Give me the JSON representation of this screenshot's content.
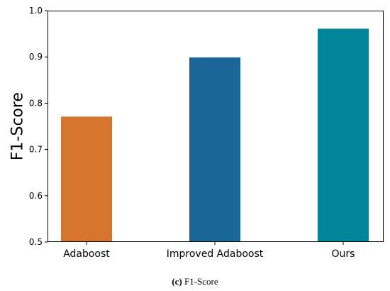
{
  "chart_data": {
    "type": "bar",
    "categories": [
      "Adaboost",
      "Improved Adaboost",
      "Ours"
    ],
    "values": [
      0.771,
      0.899,
      0.961
    ],
    "ylabel": "F1-Score",
    "xlabel": "",
    "ylim": [
      0.5,
      1.0
    ],
    "yticks": [
      "0.5",
      "0.6",
      "0.7",
      "0.8",
      "0.9",
      "1.0"
    ],
    "ytick_values": [
      0.5,
      0.6,
      0.7,
      0.8,
      0.9,
      1.0
    ],
    "colors": [
      "#d5742c",
      "#1b6698",
      "#008698"
    ],
    "grid": false
  },
  "caption": {
    "tag": "(c)",
    "text": "F1-Score"
  }
}
